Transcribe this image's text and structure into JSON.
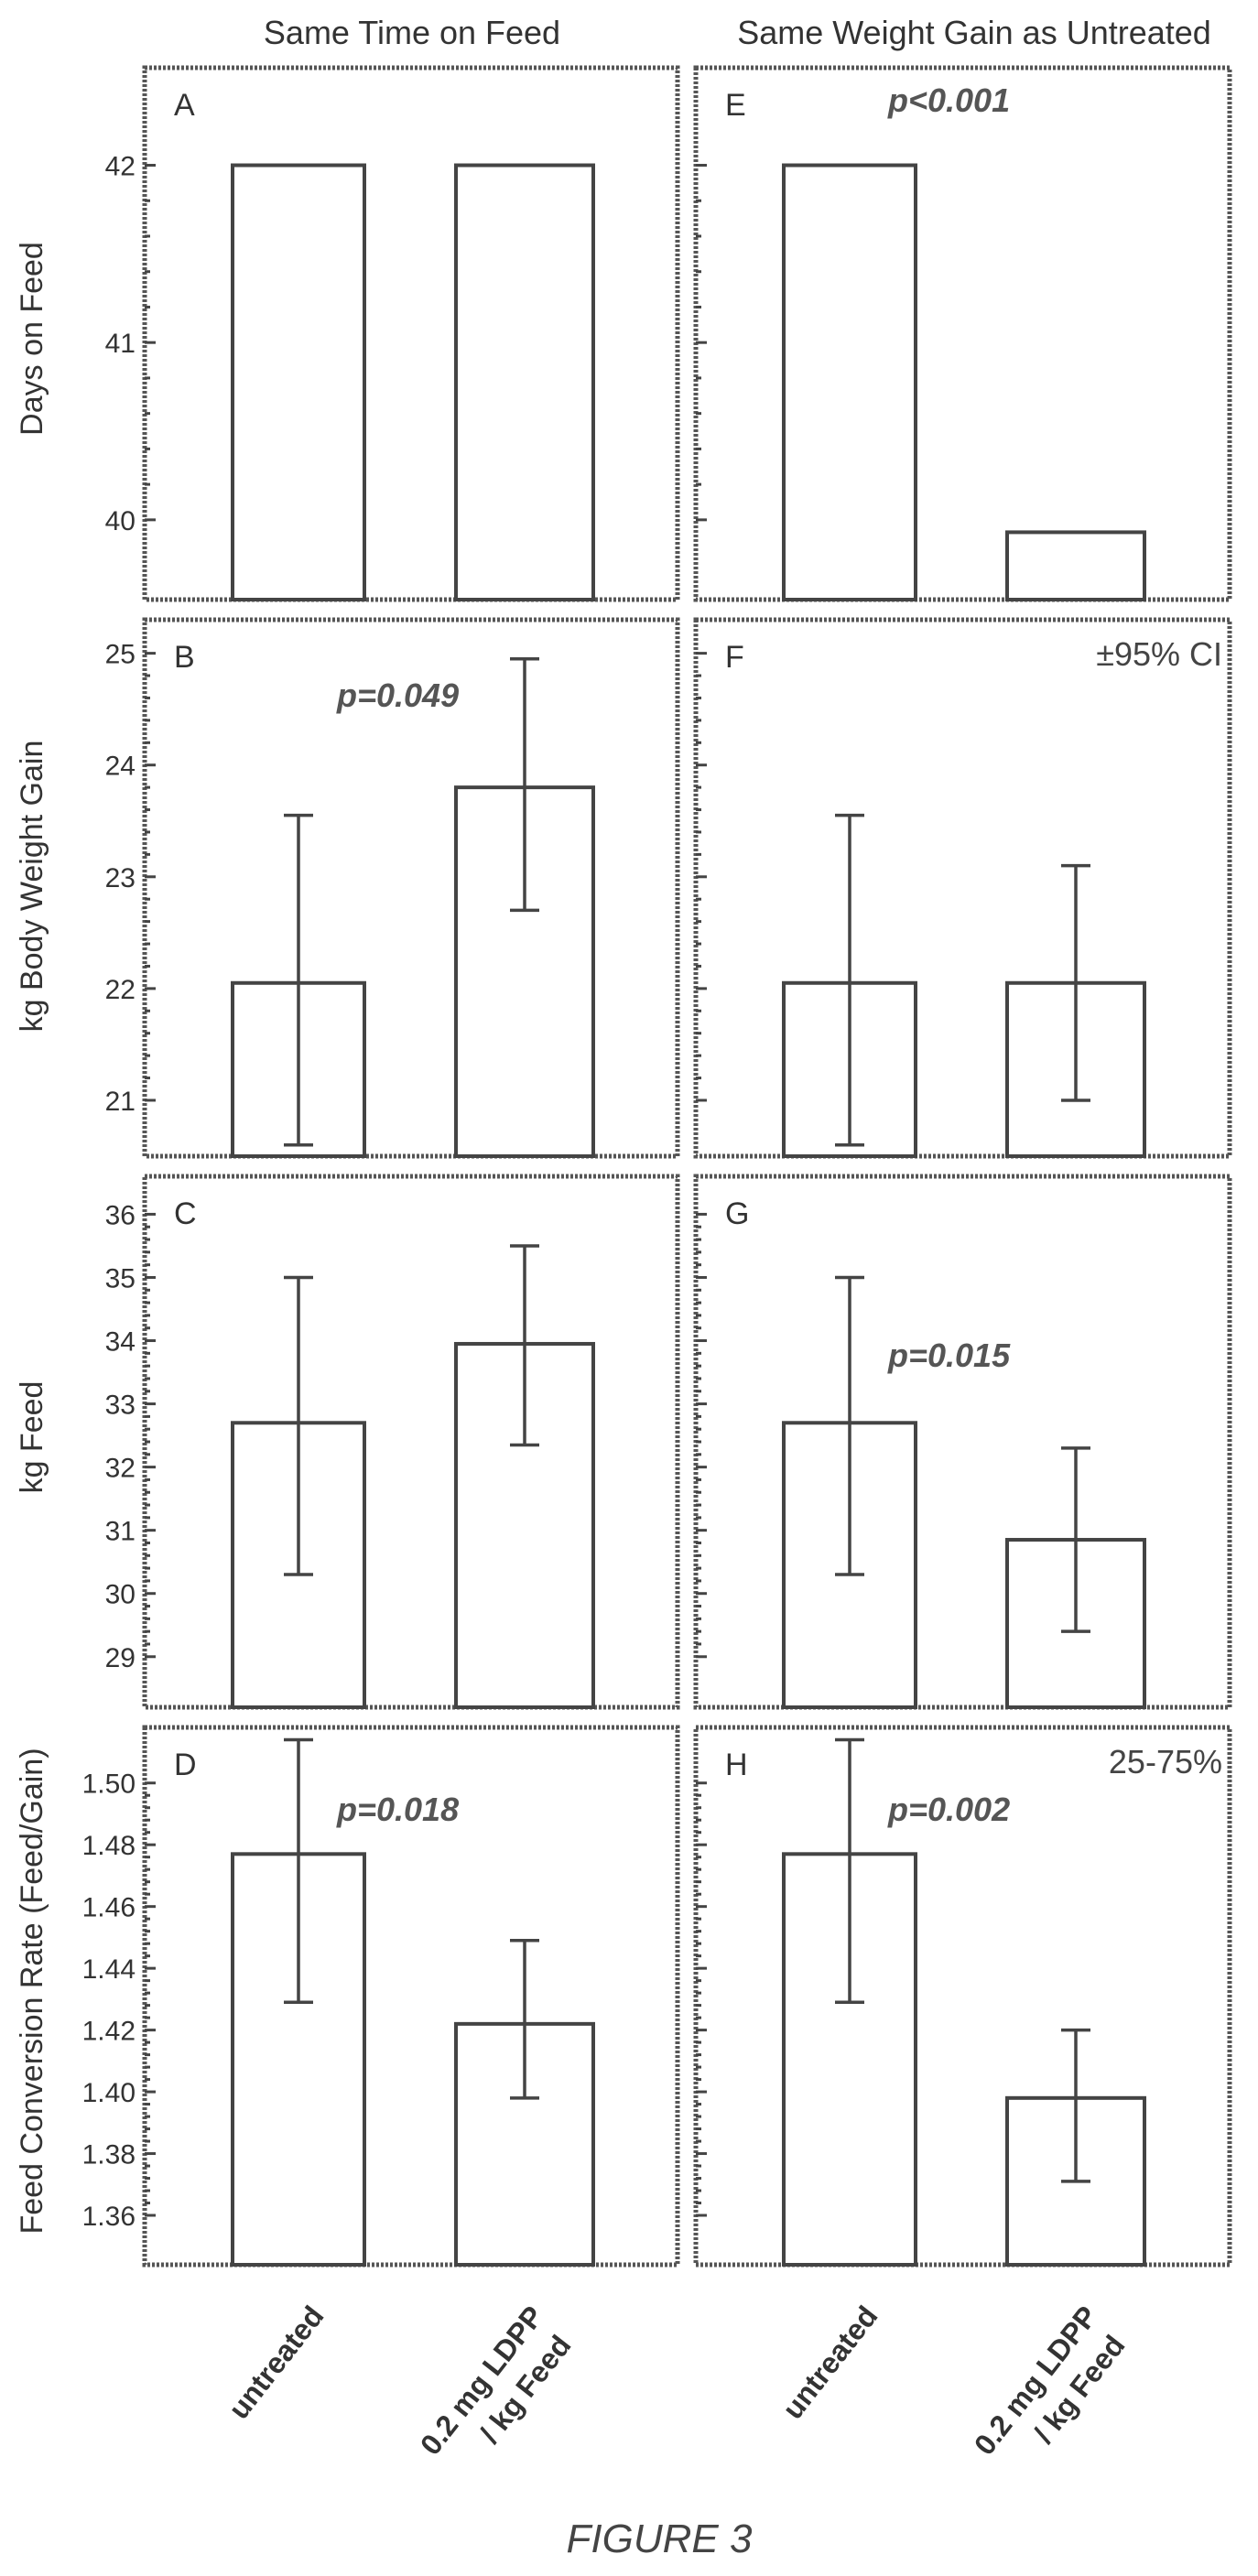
{
  "column_titles": [
    "Same Time on Feed",
    "Same Weight Gain as Untreated"
  ],
  "row_ylabels": [
    "Days on Feed",
    "kg Body Weight Gain",
    "kg Feed",
    "Feed Conversion Rate (Feed/Gain)"
  ],
  "categories": [
    "untreated",
    "0.2 mg LDPP",
    "/ kg Feed"
  ],
  "figure_caption": "FIGURE 3",
  "chart_data": [
    {
      "type": "bar",
      "panel": "A",
      "ylim": [
        39.55,
        42.55
      ],
      "yticks": [
        40,
        41,
        42
      ],
      "values": [
        42,
        42
      ],
      "err_low": [
        null,
        null
      ],
      "err_high": [
        null,
        null
      ],
      "pvalue": "",
      "note": ""
    },
    {
      "type": "bar",
      "panel": "E",
      "ylim": [
        39.55,
        42.55
      ],
      "yticks": [
        40,
        41,
        42
      ],
      "values": [
        42,
        39.93
      ],
      "err_low": [
        null,
        null
      ],
      "err_high": [
        null,
        null
      ],
      "pvalue": "p<0.001",
      "note": ""
    },
    {
      "type": "bar",
      "panel": "B",
      "ylim": [
        20.5,
        25.3
      ],
      "yticks": [
        21,
        22,
        23,
        24,
        25
      ],
      "values": [
        22.05,
        23.8
      ],
      "err_low": [
        20.6,
        22.7
      ],
      "err_high": [
        23.55,
        24.95
      ],
      "pvalue": "p=0.049",
      "note": ""
    },
    {
      "type": "bar",
      "panel": "F",
      "ylim": [
        20.5,
        25.3
      ],
      "yticks": [
        21,
        22,
        23,
        24,
        25
      ],
      "values": [
        22.05,
        22.05
      ],
      "err_low": [
        20.6,
        21.0
      ],
      "err_high": [
        23.55,
        23.1
      ],
      "pvalue": "",
      "note": "±95% CI"
    },
    {
      "type": "bar",
      "panel": "C",
      "ylim": [
        28.2,
        36.6
      ],
      "yticks": [
        29,
        30,
        31,
        32,
        33,
        34,
        35,
        36
      ],
      "values": [
        32.7,
        33.95
      ],
      "err_low": [
        30.3,
        32.35
      ],
      "err_high": [
        35.0,
        35.5
      ],
      "pvalue": "",
      "note": ""
    },
    {
      "type": "bar",
      "panel": "G",
      "ylim": [
        28.2,
        36.6
      ],
      "yticks": [
        29,
        30,
        31,
        32,
        33,
        34,
        35,
        36
      ],
      "values": [
        32.7,
        30.85
      ],
      "err_low": [
        30.3,
        29.4
      ],
      "err_high": [
        35.0,
        32.3
      ],
      "pvalue": "p=0.015",
      "note": ""
    },
    {
      "type": "bar",
      "panel": "D",
      "ylim": [
        1.344,
        1.518
      ],
      "yticks": [
        1.36,
        1.38,
        1.4,
        1.42,
        1.44,
        1.46,
        1.48,
        1.5
      ],
      "ytick_labels": [
        "1.36",
        "1.38",
        "1.40",
        "1.42",
        "1.44",
        "1.46",
        "1.48",
        "1.50"
      ],
      "values": [
        1.477,
        1.422
      ],
      "err_low": [
        1.429,
        1.398
      ],
      "err_high": [
        1.514,
        1.449
      ],
      "pvalue": "p=0.018",
      "note": ""
    },
    {
      "type": "bar",
      "panel": "H",
      "ylim": [
        1.344,
        1.518
      ],
      "yticks": [
        1.36,
        1.38,
        1.4,
        1.42,
        1.44,
        1.46,
        1.48,
        1.5
      ],
      "ytick_labels": [
        "1.36",
        "1.38",
        "1.40",
        "1.42",
        "1.44",
        "1.46",
        "1.48",
        "1.50"
      ],
      "values": [
        1.477,
        1.398
      ],
      "err_low": [
        1.429,
        1.371
      ],
      "err_high": [
        1.514,
        1.42
      ],
      "pvalue": "p=0.002",
      "note": "25-75%"
    }
  ]
}
